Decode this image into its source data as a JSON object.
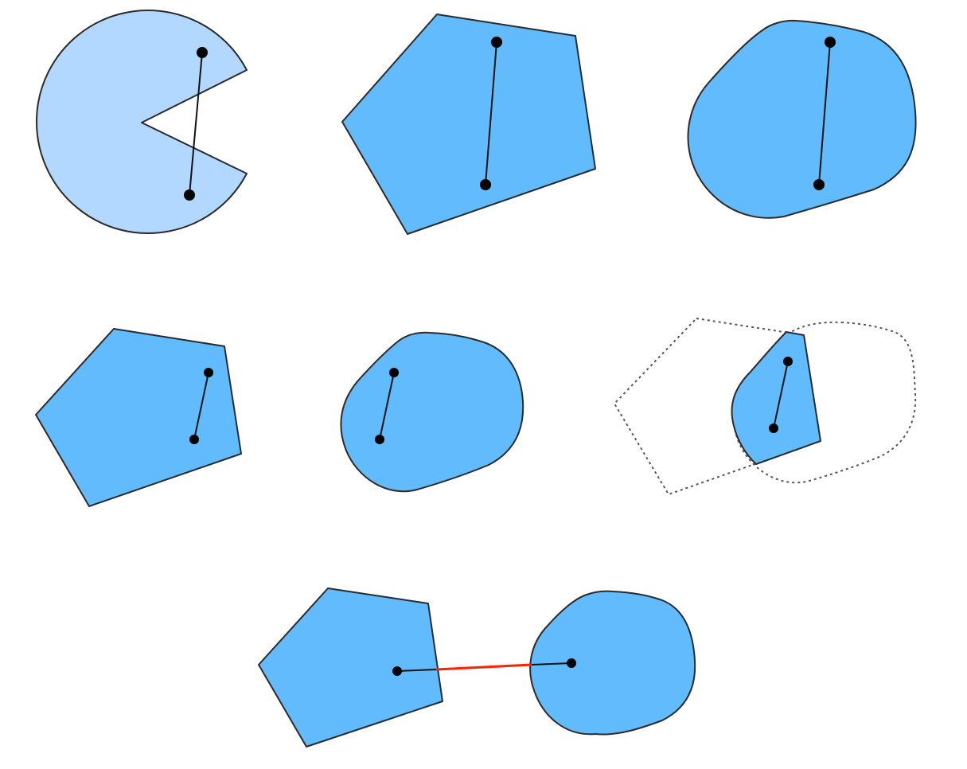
{
  "colors": {
    "light_fill": "#b3d8ff",
    "shape_fill": "#61bbfc",
    "outline": "#2b2b2b",
    "segment": "#111111",
    "point": "#000000",
    "dashed_outline": "#555555",
    "highlight_segment": "#ff2200",
    "background": "#ffffff"
  },
  "panels": [
    {
      "id": "non-convex-pacman",
      "shapes": [
        "pacman"
      ],
      "segment": "line-crossing-outside"
    },
    {
      "id": "convex-pentagon",
      "shapes": [
        "pentagon"
      ],
      "segment": "line-inside"
    },
    {
      "id": "convex-rounded-blob",
      "shapes": [
        "rounded-blob"
      ],
      "segment": "line-inside"
    },
    {
      "id": "pentagon-small-segment",
      "shapes": [
        "pentagon"
      ],
      "segment": "line-inside"
    },
    {
      "id": "blob-small-segment",
      "shapes": [
        "rounded-blob"
      ],
      "segment": "line-inside"
    },
    {
      "id": "intersection-of-pentagon-and-blob",
      "shapes": [
        "pentagon-dashed",
        "blob-dashed",
        "intersection-filled"
      ],
      "segment": "line-inside"
    },
    {
      "id": "pentagon-and-blob-separated",
      "shapes": [
        "pentagon",
        "rounded-blob"
      ],
      "segment": "line-between-with-gap-highlighted"
    }
  ]
}
